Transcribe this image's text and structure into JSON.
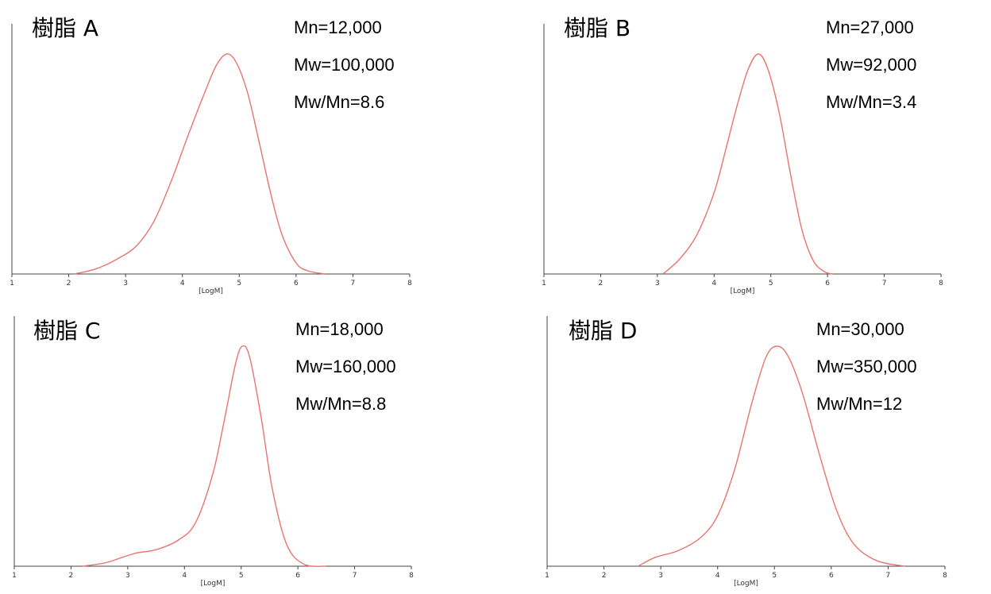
{
  "chart_data": [
    {
      "type": "line",
      "title": "樹脂 A",
      "xlabel": "[LogM]",
      "xlim": [
        1,
        8
      ],
      "x_ticks": [
        "1",
        "2",
        "3",
        "4",
        "5",
        "6",
        "7",
        "8"
      ],
      "stats": [
        "Mn=12,000",
        "Mw=100,000",
        "Mw/Mn=8.6"
      ],
      "series": [
        {
          "color": "#e8756f",
          "x": [
            2.1,
            2.5,
            2.9,
            3.2,
            3.5,
            3.8,
            4.1,
            4.4,
            4.6,
            4.78,
            4.95,
            5.15,
            5.35,
            5.55,
            5.75,
            6.0,
            6.2,
            6.5
          ],
          "y": [
            0.0,
            0.025,
            0.075,
            0.13,
            0.24,
            0.42,
            0.63,
            0.83,
            0.95,
            1.0,
            0.96,
            0.82,
            0.6,
            0.37,
            0.18,
            0.05,
            0.015,
            0.0
          ]
        }
      ]
    },
    {
      "type": "line",
      "title": "樹脂 B",
      "xlabel": "[LogM]",
      "xlim": [
        1,
        8
      ],
      "x_ticks": [
        "1",
        "2",
        "3",
        "4",
        "5",
        "6",
        "7",
        "8"
      ],
      "stats": [
        "Mn=27,000",
        "Mw=92,000",
        "Mw/Mn=3.4"
      ],
      "series": [
        {
          "color": "#e8756f",
          "x": [
            3.1,
            3.4,
            3.7,
            4.0,
            4.2,
            4.4,
            4.6,
            4.78,
            4.95,
            5.15,
            5.35,
            5.55,
            5.75,
            5.95,
            6.1
          ],
          "y": [
            0.0,
            0.07,
            0.18,
            0.37,
            0.56,
            0.76,
            0.93,
            1.0,
            0.93,
            0.73,
            0.45,
            0.2,
            0.06,
            0.01,
            0.0
          ]
        }
      ]
    },
    {
      "type": "line",
      "title": "樹脂 C",
      "xlabel": "[LogM]",
      "xlim": [
        1,
        8
      ],
      "x_ticks": [
        "1",
        "2",
        "3",
        "4",
        "5",
        "6",
        "7",
        "8"
      ],
      "stats": [
        "Mn=18,000",
        "Mw=160,000",
        "Mw/Mn=8.8"
      ],
      "series": [
        {
          "color": "#e8756f",
          "x": [
            2.2,
            2.6,
            2.9,
            3.15,
            3.5,
            3.9,
            4.2,
            4.5,
            4.7,
            4.9,
            5.02,
            5.15,
            5.35,
            5.55,
            5.8,
            6.1,
            6.5
          ],
          "y": [
            0.0,
            0.015,
            0.04,
            0.06,
            0.075,
            0.12,
            0.2,
            0.42,
            0.66,
            0.92,
            1.0,
            0.95,
            0.68,
            0.35,
            0.1,
            0.01,
            0.0
          ]
        }
      ]
    },
    {
      "type": "line",
      "title": "樹脂 D",
      "xlabel": "[LogM]",
      "xlim": [
        1,
        8
      ],
      "x_ticks": [
        "1",
        "2",
        "3",
        "4",
        "5",
        "6",
        "7",
        "8"
      ],
      "stats": [
        "Mn=30,000",
        "Mw=350,000",
        "Mw/Mn=12"
      ],
      "series": [
        {
          "color": "#e8756f",
          "x": [
            2.6,
            2.9,
            3.3,
            3.7,
            4.0,
            4.3,
            4.6,
            4.85,
            5.05,
            5.25,
            5.5,
            5.8,
            6.1,
            6.4,
            6.8,
            7.3
          ],
          "y": [
            0.0,
            0.04,
            0.07,
            0.13,
            0.23,
            0.44,
            0.74,
            0.95,
            1.0,
            0.95,
            0.78,
            0.5,
            0.25,
            0.1,
            0.025,
            0.0
          ]
        }
      ]
    }
  ]
}
